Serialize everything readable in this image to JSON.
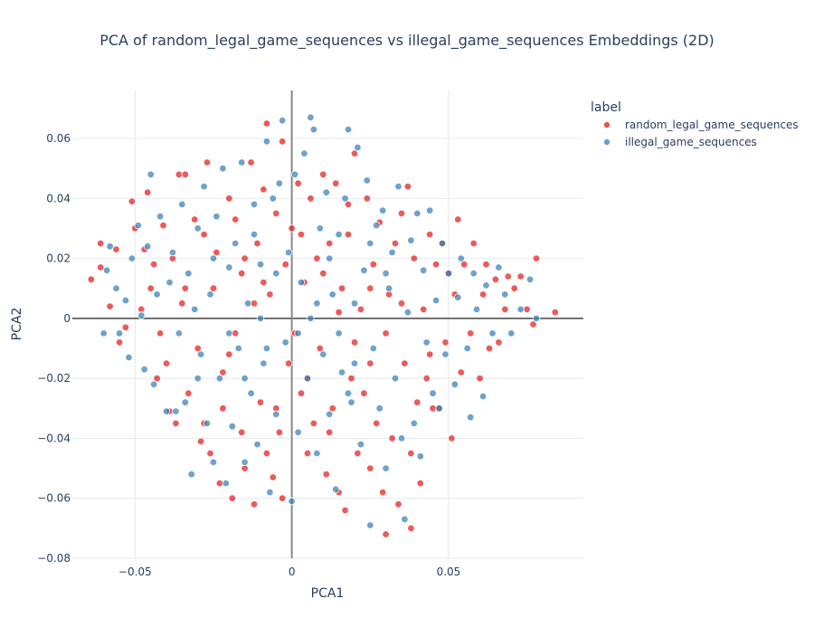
{
  "chart_data": {
    "type": "scatter",
    "title": "PCA of random_legal_game_sequences vs illegal_game_sequences Embeddings (2D)",
    "xlabel": "PCA1",
    "ylabel": "PCA2",
    "xlim": [
      -0.07,
      0.093
    ],
    "ylim": [
      -0.08,
      0.076
    ],
    "xticks": [
      -0.05,
      0,
      0.05
    ],
    "xtick_labels": [
      "−0.05",
      "0",
      "0.05"
    ],
    "yticks": [
      -0.08,
      -0.06,
      -0.04,
      -0.02,
      0,
      0.02,
      0.04,
      0.06
    ],
    "ytick_labels": [
      "−0.08",
      "−0.06",
      "−0.04",
      "−0.02",
      "0",
      "0.02",
      "0.04",
      "0.06"
    ],
    "grid": true,
    "legend_title": "label",
    "legend_position": "top-right",
    "series": [
      {
        "name": "random_legal_game_sequences",
        "color": "#e41a1c",
        "points": [
          [
            -0.064,
            0.013
          ],
          [
            -0.061,
            0.025
          ],
          [
            -0.061,
            0.017
          ],
          [
            -0.058,
            0.004
          ],
          [
            -0.056,
            0.023
          ],
          [
            -0.055,
            -0.008
          ],
          [
            -0.053,
            -0.003
          ],
          [
            -0.051,
            0.039
          ],
          [
            -0.05,
            0.03
          ],
          [
            -0.047,
            0.023
          ],
          [
            -0.046,
            0.042
          ],
          [
            -0.045,
            0.01
          ],
          [
            -0.044,
            0.018
          ],
          [
            -0.043,
            -0.02
          ],
          [
            -0.041,
            0.031
          ],
          [
            -0.04,
            -0.015
          ],
          [
            -0.039,
            -0.031
          ],
          [
            -0.037,
            -0.035
          ],
          [
            -0.036,
            0.048
          ],
          [
            -0.034,
            0.048
          ],
          [
            -0.034,
            0.01
          ],
          [
            -0.033,
            -0.025
          ],
          [
            -0.031,
            0.033
          ],
          [
            -0.029,
            -0.041
          ],
          [
            -0.028,
            0.028
          ],
          [
            -0.027,
            0.052
          ],
          [
            -0.026,
            -0.045
          ],
          [
            -0.024,
            0.022
          ],
          [
            -0.023,
            -0.055
          ],
          [
            -0.022,
            -0.018
          ],
          [
            -0.02,
            0.04
          ],
          [
            -0.019,
            -0.06
          ],
          [
            -0.018,
            0.033
          ],
          [
            -0.016,
            -0.038
          ],
          [
            -0.016,
            0.015
          ],
          [
            -0.015,
            -0.05
          ],
          [
            -0.013,
            0.052
          ],
          [
            -0.012,
            -0.062
          ],
          [
            -0.011,
            0.025
          ],
          [
            -0.01,
            -0.028
          ],
          [
            -0.009,
            0.043
          ],
          [
            -0.008,
            -0.045
          ],
          [
            -0.008,
            0.065
          ],
          [
            -0.007,
            0.008
          ],
          [
            -0.006,
            -0.053
          ],
          [
            -0.005,
            0.035
          ],
          [
            -0.004,
            -0.038
          ],
          [
            -0.003,
            0.059
          ],
          [
            -0.003,
            -0.06
          ],
          [
            -0.002,
            0.018
          ],
          [
            -0.001,
            -0.015
          ],
          [
            0.0,
            0.03
          ],
          [
            0.001,
            -0.005
          ],
          [
            0.002,
            0.045
          ],
          [
            0.003,
            -0.025
          ],
          [
            0.004,
            0.012
          ],
          [
            0.005,
            -0.045
          ],
          [
            0.006,
            0.04
          ],
          [
            0.007,
            -0.035
          ],
          [
            0.008,
            0.02
          ],
          [
            0.009,
            -0.01
          ],
          [
            0.01,
            0.048
          ],
          [
            0.011,
            -0.052
          ],
          [
            0.012,
            0.025
          ],
          [
            0.013,
            -0.03
          ],
          [
            0.014,
            0.045
          ],
          [
            0.015,
            -0.058
          ],
          [
            0.016,
            0.01
          ],
          [
            0.017,
            -0.064
          ],
          [
            0.018,
            0.038
          ],
          [
            0.019,
            -0.02
          ],
          [
            0.02,
            0.055
          ],
          [
            0.021,
            -0.045
          ],
          [
            0.022,
            0.003
          ],
          [
            0.023,
            -0.025
          ],
          [
            0.024,
            0.04
          ],
          [
            0.025,
            -0.05
          ],
          [
            0.026,
            0.018
          ],
          [
            0.027,
            -0.035
          ],
          [
            0.028,
            0.032
          ],
          [
            0.029,
            -0.058
          ],
          [
            0.03,
            -0.072
          ],
          [
            0.031,
            0.008
          ],
          [
            0.032,
            -0.04
          ],
          [
            0.033,
            0.025
          ],
          [
            0.034,
            -0.062
          ],
          [
            0.035,
            0.035
          ],
          [
            0.036,
            -0.015
          ],
          [
            0.037,
            0.044
          ],
          [
            0.038,
            -0.07
          ],
          [
            0.039,
            0.02
          ],
          [
            0.04,
            -0.028
          ],
          [
            0.041,
            -0.055
          ],
          [
            0.042,
            0.003
          ],
          [
            0.043,
            -0.02
          ],
          [
            0.044,
            0.028
          ],
          [
            0.045,
            -0.03
          ],
          [
            0.046,
            0.018
          ],
          [
            0.047,
            -0.03
          ],
          [
            0.048,
            0.025
          ],
          [
            0.049,
            -0.008
          ],
          [
            0.05,
            0.015
          ],
          [
            0.051,
            -0.04
          ],
          [
            0.052,
            0.008
          ],
          [
            0.053,
            0.033
          ],
          [
            0.054,
            -0.018
          ],
          [
            0.055,
            0.018
          ],
          [
            0.057,
            -0.005
          ],
          [
            0.058,
            0.025
          ],
          [
            0.06,
            -0.02
          ],
          [
            0.061,
            0.008
          ],
          [
            0.062,
            0.018
          ],
          [
            0.063,
            -0.01
          ],
          [
            0.065,
            0.013
          ],
          [
            0.066,
            -0.008
          ],
          [
            0.068,
            0.003
          ],
          [
            0.069,
            0.014
          ],
          [
            0.071,
            0.01
          ],
          [
            0.073,
            0.014
          ],
          [
            0.075,
            0.003
          ],
          [
            0.077,
            -0.002
          ],
          [
            0.078,
            0.02
          ],
          [
            0.084,
            0.002
          ],
          [
            -0.03,
            -0.01
          ],
          [
            -0.025,
            0.01
          ],
          [
            -0.018,
            -0.005
          ],
          [
            -0.012,
            0.005
          ],
          [
            -0.035,
            0.005
          ],
          [
            -0.042,
            -0.005
          ],
          [
            -0.048,
            0.003
          ],
          [
            0.015,
            0.002
          ],
          [
            0.02,
            -0.008
          ],
          [
            0.025,
            0.01
          ],
          [
            0.03,
            -0.005
          ],
          [
            0.035,
            0.005
          ],
          [
            -0.005,
            -0.03
          ],
          [
            0.005,
            -0.02
          ],
          [
            -0.015,
            0.02
          ],
          [
            0.01,
            0.015
          ],
          [
            0.025,
            -0.015
          ],
          [
            -0.022,
            -0.03
          ],
          [
            -0.028,
            -0.035
          ],
          [
            0.038,
            -0.045
          ],
          [
            0.044,
            -0.012
          ],
          [
            -0.009,
            0.012
          ],
          [
            0.003,
            0.028
          ],
          [
            -0.038,
            0.02
          ],
          [
            0.012,
            -0.038
          ],
          [
            -0.02,
            -0.012
          ],
          [
            0.018,
            0.028
          ]
        ]
      },
      {
        "name": "illegal_game_sequences",
        "color": "#377eb8",
        "points": [
          [
            -0.06,
            -0.005
          ],
          [
            -0.059,
            0.016
          ],
          [
            -0.058,
            0.024
          ],
          [
            -0.056,
            0.01
          ],
          [
            -0.055,
            -0.005
          ],
          [
            -0.053,
            0.006
          ],
          [
            -0.052,
            -0.013
          ],
          [
            -0.051,
            0.02
          ],
          [
            -0.049,
            0.031
          ],
          [
            -0.048,
            0.001
          ],
          [
            -0.047,
            -0.017
          ],
          [
            -0.046,
            0.024
          ],
          [
            -0.044,
            -0.022
          ],
          [
            -0.043,
            0.008
          ],
          [
            -0.042,
            0.034
          ],
          [
            -0.04,
            -0.031
          ],
          [
            -0.039,
            0.012
          ],
          [
            -0.038,
            0.022
          ],
          [
            -0.036,
            -0.005
          ],
          [
            -0.035,
            0.038
          ],
          [
            -0.034,
            -0.028
          ],
          [
            -0.033,
            0.015
          ],
          [
            -0.032,
            -0.052
          ],
          [
            -0.031,
            0.003
          ],
          [
            -0.03,
            0.03
          ],
          [
            -0.029,
            -0.012
          ],
          [
            -0.028,
            0.044
          ],
          [
            -0.027,
            -0.035
          ],
          [
            -0.026,
            0.008
          ],
          [
            -0.025,
            -0.048
          ],
          [
            -0.024,
            0.034
          ],
          [
            -0.023,
            -0.02
          ],
          [
            -0.022,
            0.05
          ],
          [
            -0.021,
            -0.055
          ],
          [
            -0.02,
            0.017
          ],
          [
            -0.019,
            -0.036
          ],
          [
            -0.018,
            0.025
          ],
          [
            -0.017,
            -0.01
          ],
          [
            -0.016,
            0.052
          ],
          [
            -0.015,
            -0.048
          ],
          [
            -0.014,
            0.005
          ],
          [
            -0.013,
            -0.025
          ],
          [
            -0.012,
            0.038
          ],
          [
            -0.011,
            -0.042
          ],
          [
            -0.01,
            0.018
          ],
          [
            -0.009,
            -0.015
          ],
          [
            -0.008,
            0.059
          ],
          [
            -0.007,
            -0.058
          ],
          [
            -0.006,
            0.04
          ],
          [
            -0.005,
            -0.032
          ],
          [
            -0.004,
            0.045
          ],
          [
            -0.003,
            0.066
          ],
          [
            -0.002,
            -0.008
          ],
          [
            -0.001,
            0.022
          ],
          [
            0.0,
            -0.061
          ],
          [
            0.001,
            0.048
          ],
          [
            0.002,
            -0.038
          ],
          [
            0.003,
            0.012
          ],
          [
            0.004,
            0.055
          ],
          [
            0.005,
            -0.02
          ],
          [
            0.006,
            0.067
          ],
          [
            0.007,
            0.063
          ],
          [
            0.008,
            -0.045
          ],
          [
            0.009,
            0.03
          ],
          [
            0.01,
            -0.012
          ],
          [
            0.011,
            0.042
          ],
          [
            0.012,
            -0.032
          ],
          [
            0.013,
            0.008
          ],
          [
            0.014,
            -0.057
          ],
          [
            0.015,
            0.028
          ],
          [
            0.016,
            -0.018
          ],
          [
            0.017,
            0.04
          ],
          [
            0.018,
            0.063
          ],
          [
            0.019,
            -0.028
          ],
          [
            0.02,
            0.005
          ],
          [
            0.021,
            0.057
          ],
          [
            0.022,
            -0.042
          ],
          [
            0.023,
            0.016
          ],
          [
            0.024,
            0.046
          ],
          [
            0.025,
            -0.069
          ],
          [
            0.026,
            -0.01
          ],
          [
            0.027,
            0.031
          ],
          [
            0.028,
            -0.03
          ],
          [
            0.029,
            0.036
          ],
          [
            0.03,
            -0.05
          ],
          [
            0.031,
            0.01
          ],
          [
            0.032,
            0.022
          ],
          [
            0.033,
            -0.02
          ],
          [
            0.034,
            0.044
          ],
          [
            0.035,
            -0.04
          ],
          [
            0.036,
            -0.067
          ],
          [
            0.037,
            0.002
          ],
          [
            0.038,
            0.026
          ],
          [
            0.039,
            -0.035
          ],
          [
            0.04,
            0.035
          ],
          [
            0.041,
            -0.046
          ],
          [
            0.042,
            0.016
          ],
          [
            0.043,
            -0.008
          ],
          [
            0.044,
            0.036
          ],
          [
            0.045,
            -0.025
          ],
          [
            0.046,
            0.006
          ],
          [
            0.047,
            -0.03
          ],
          [
            0.048,
            0.025
          ],
          [
            0.049,
            -0.012
          ],
          [
            0.05,
            0.015
          ],
          [
            0.052,
            -0.022
          ],
          [
            0.053,
            0.007
          ],
          [
            0.054,
            0.02
          ],
          [
            0.056,
            -0.01
          ],
          [
            0.058,
            0.015
          ],
          [
            0.059,
            0.003
          ],
          [
            0.057,
            -0.033
          ],
          [
            0.061,
            -0.026
          ],
          [
            0.062,
            0.011
          ],
          [
            0.064,
            -0.005
          ],
          [
            0.066,
            0.017
          ],
          [
            0.068,
            0.008
          ],
          [
            0.07,
            -0.005
          ],
          [
            0.073,
            0.003
          ],
          [
            0.076,
            0.013
          ],
          [
            0.078,
            0.0
          ],
          [
            -0.045,
            0.048
          ],
          [
            -0.037,
            -0.031
          ],
          [
            0.002,
            -0.005
          ],
          [
            -0.01,
            0.0
          ],
          [
            0.008,
            0.005
          ],
          [
            -0.02,
            -0.005
          ],
          [
            0.015,
            -0.005
          ],
          [
            -0.005,
            0.015
          ],
          [
            0.012,
            0.02
          ],
          [
            -0.03,
            -0.02
          ],
          [
            0.025,
            0.025
          ],
          [
            -0.015,
            -0.02
          ],
          [
            0.02,
            -0.015
          ],
          [
            -0.025,
            0.02
          ],
          [
            0.03,
            0.015
          ],
          [
            -0.008,
            -0.01
          ],
          [
            0.006,
            0.0
          ],
          [
            -0.012,
            0.028
          ],
          [
            0.018,
            -0.025
          ]
        ]
      }
    ]
  }
}
